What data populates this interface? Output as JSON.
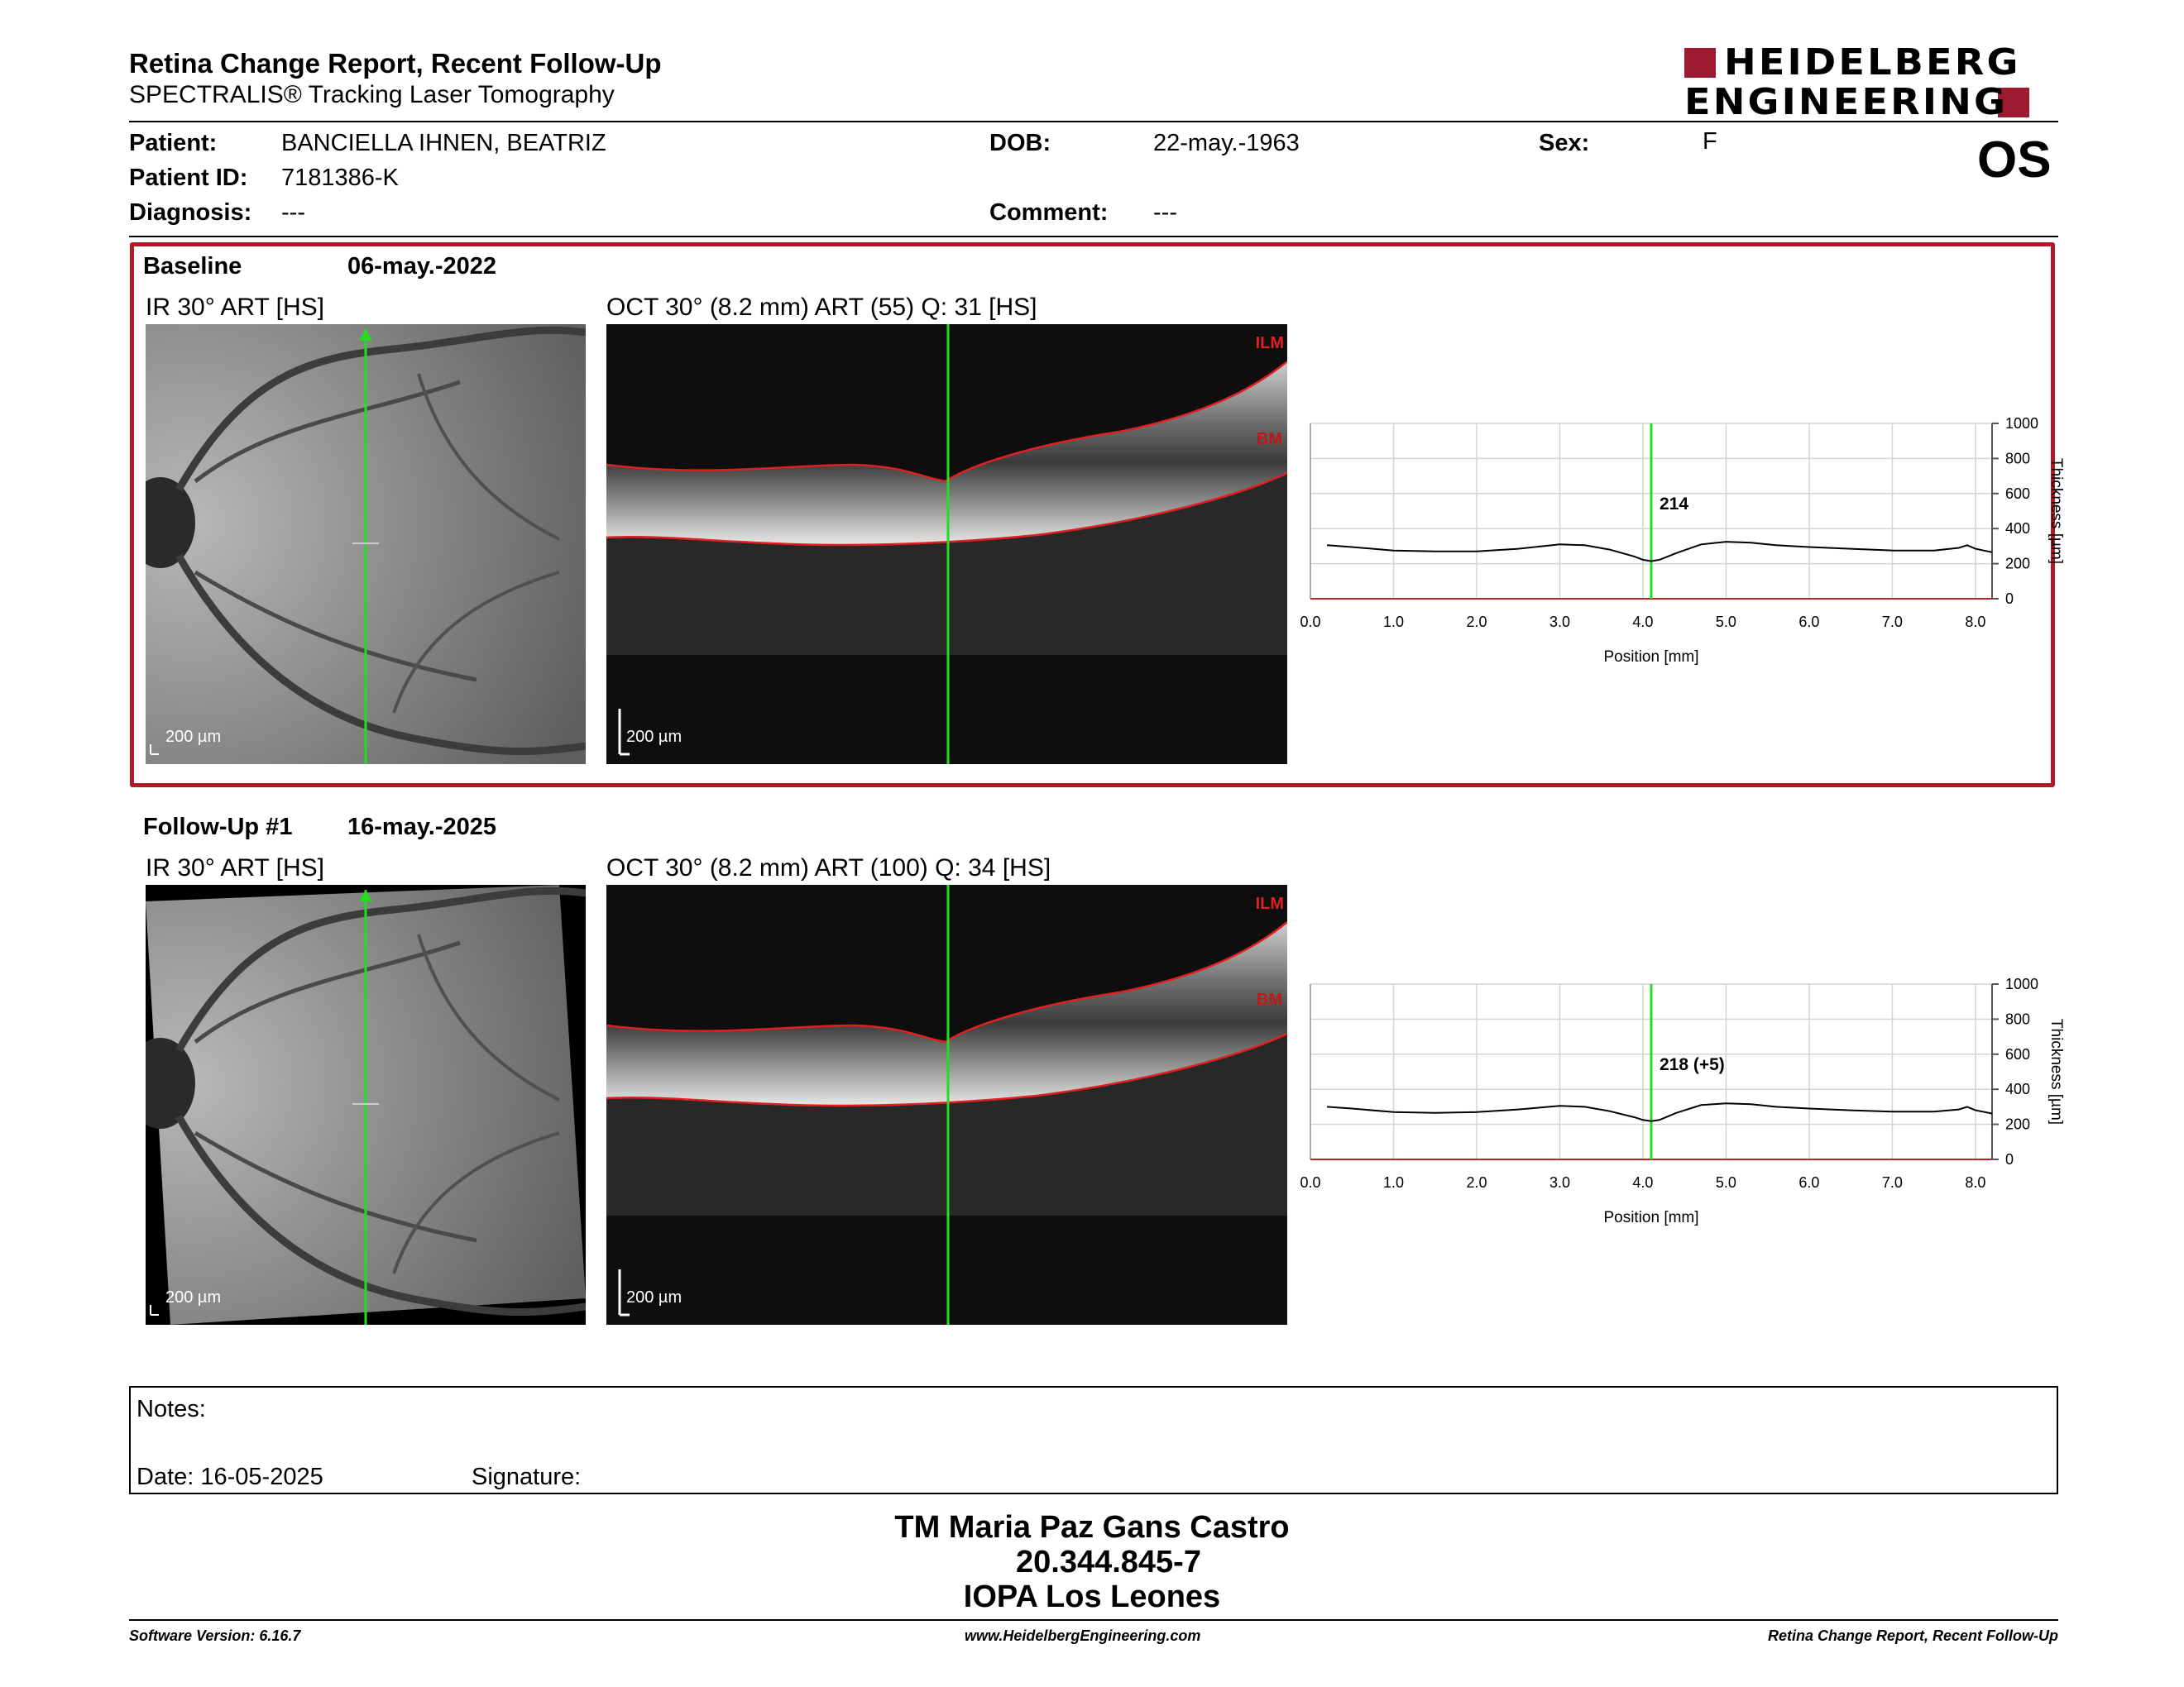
{
  "header": {
    "title": "Retina Change Report, Recent Follow-Up",
    "subtitle": "SPECTRALIS® Tracking Laser Tomography",
    "logo_line1": "HEIDELBERG",
    "logo_line2": "ENGINEERING",
    "eye": "OS"
  },
  "patient": {
    "patient_label": "Patient:",
    "patient_value": "BANCIELLA IHNEN, BEATRIZ",
    "id_label": "Patient ID:",
    "id_value": "7181386-K",
    "diagnosis_label": "Diagnosis:",
    "diagnosis_value": "---",
    "dob_label": "DOB:",
    "dob_value": "22-may.-1963",
    "comment_label": "Comment:",
    "comment_value": "---",
    "sex_label": "Sex:",
    "sex_value": "F"
  },
  "colors": {
    "accent": "#b11a25",
    "logo": "#9b1b30",
    "scanline": "#22dd22",
    "segmentation": "#e02020"
  },
  "exams": [
    {
      "label": "Baseline",
      "date": "06-may.-2022",
      "ir_label": "IR 30° ART [HS]",
      "oct_label": "OCT 30° (8.2 mm) ART (55) Q: 31 [HS]",
      "ir_scale": "200 µm",
      "oct_scale": "200 µm",
      "ilm": "ILM",
      "bm": "BM"
    },
    {
      "label": "Follow-Up #1",
      "date": "16-may.-2025",
      "ir_label": "IR 30° ART [HS]",
      "oct_label": "OCT 30° (8.2 mm) ART (100) Q: 34 [HS]",
      "ir_scale": "200 µm",
      "oct_scale": "200 µm",
      "ilm": "ILM",
      "bm": "BM"
    }
  ],
  "chart_data": [
    {
      "type": "line",
      "xlabel": "Position [mm]",
      "ylabel": "Thickness [µm]",
      "xlim": [
        0,
        8.2
      ],
      "ylim": [
        0,
        1000
      ],
      "xticks": [
        "0.0",
        "1.0",
        "2.0",
        "3.0",
        "4.0",
        "5.0",
        "6.0",
        "7.0",
        "8.0"
      ],
      "yticks": [
        "0",
        "200",
        "400",
        "600",
        "800",
        "1000"
      ],
      "grid": true,
      "cursor_x": 4.1,
      "cursor_label": "214",
      "x": [
        0.2,
        0.5,
        1.0,
        1.5,
        2.0,
        2.5,
        3.0,
        3.3,
        3.6,
        3.9,
        4.0,
        4.1,
        4.2,
        4.4,
        4.7,
        5.0,
        5.3,
        5.6,
        6.0,
        6.5,
        7.0,
        7.5,
        7.8,
        7.9,
        8.0,
        8.2
      ],
      "y": [
        305,
        295,
        275,
        270,
        270,
        285,
        310,
        305,
        280,
        240,
        222,
        214,
        222,
        260,
        310,
        325,
        320,
        305,
        295,
        285,
        275,
        275,
        290,
        305,
        285,
        265
      ]
    },
    {
      "type": "line",
      "xlabel": "Position [mm]",
      "ylabel": "Thickness [µm]",
      "xlim": [
        0,
        8.2
      ],
      "ylim": [
        0,
        1000
      ],
      "xticks": [
        "0.0",
        "1.0",
        "2.0",
        "3.0",
        "4.0",
        "5.0",
        "6.0",
        "7.0",
        "8.0"
      ],
      "yticks": [
        "0",
        "200",
        "400",
        "600",
        "800",
        "1000"
      ],
      "grid": true,
      "cursor_x": 4.1,
      "cursor_label": "218 (+5)",
      "x": [
        0.2,
        0.5,
        1.0,
        1.5,
        2.0,
        2.5,
        3.0,
        3.3,
        3.6,
        3.9,
        4.0,
        4.1,
        4.2,
        4.4,
        4.7,
        5.0,
        5.3,
        5.6,
        6.0,
        6.5,
        7.0,
        7.5,
        7.8,
        7.9,
        8.0,
        8.2
      ],
      "y": [
        300,
        290,
        270,
        265,
        270,
        285,
        305,
        300,
        275,
        240,
        225,
        218,
        225,
        265,
        310,
        320,
        315,
        300,
        290,
        280,
        272,
        272,
        285,
        300,
        280,
        262
      ]
    }
  ],
  "notes": {
    "notes_label": "Notes:",
    "date_label": "Date: 16-05-2025",
    "signature_label": "Signature:"
  },
  "signature": {
    "name": "TM Maria Paz Gans Castro",
    "id": "20.344.845-7",
    "org": "IOPA Los Leones"
  },
  "footer": {
    "left": "Software Version: 6.16.7",
    "center": "www.HeidelbergEngineering.com",
    "right": "Retina Change Report, Recent Follow-Up"
  }
}
